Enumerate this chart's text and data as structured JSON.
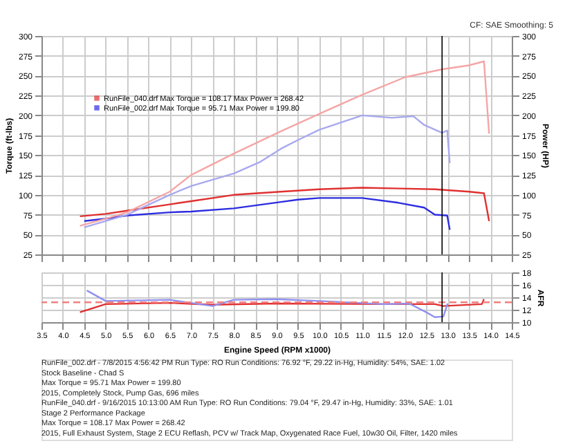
{
  "chart_data": [
    {
      "type": "line",
      "ylabel": "Torque (ft-lbs)",
      "y2label": "Power (HP)",
      "annotations": [
        "CF: SAE  Smoothing: 5"
      ],
      "xlim": [
        3.5,
        14.5
      ],
      "xticks": [
        {
          "value": 3.5,
          "label": null
        },
        {
          "value": 4,
          "label": null
        },
        {
          "value": 4.5,
          "label": null
        },
        {
          "value": 5,
          "label": null
        },
        {
          "value": 5.5,
          "label": null
        },
        {
          "value": 6,
          "label": null
        },
        {
          "value": 6.5,
          "label": null
        },
        {
          "value": 7,
          "label": null
        },
        {
          "value": 7.5,
          "label": null
        },
        {
          "value": 8,
          "label": null
        },
        {
          "value": 8.5,
          "label": null
        },
        {
          "value": 9,
          "label": null
        },
        {
          "value": 9.5,
          "label": null
        },
        {
          "value": 10,
          "label": null
        },
        {
          "value": 10.5,
          "label": null
        },
        {
          "value": 11,
          "label": null
        },
        {
          "value": 11.5,
          "label": null
        },
        {
          "value": 12,
          "label": null
        },
        {
          "value": 12.5,
          "label": null
        },
        {
          "value": 13,
          "label": null
        },
        {
          "value": 13.5,
          "label": null
        },
        {
          "value": 14,
          "label": null
        },
        {
          "value": 14.5,
          "label": null
        }
      ],
      "ylim": [
        25,
        300
      ],
      "yticks": [
        25,
        50,
        75,
        100,
        125,
        150,
        175,
        200,
        225,
        250,
        275,
        300
      ],
      "y2lim": [
        25,
        300
      ],
      "y2ticks": [
        25,
        50,
        75,
        100,
        125,
        150,
        175,
        200,
        225,
        250,
        275,
        300
      ],
      "tick_labels": "y",
      "grid": true,
      "legend": "top left",
      "ref_lines": [
        {
          "axis": "x",
          "value": 12.87,
          "color": "#000000"
        }
      ],
      "series": [
        {
          "name": "RunFile_040.drf Max Torque = 108.17    Max Power = 268.42",
          "color": "#e03030",
          "x": [
            4.4,
            5.0,
            5.5,
            6.5,
            7.0,
            8.0,
            9.1,
            10.0,
            11.0,
            11.85,
            12.7,
            13.5,
            13.85,
            13.97
          ],
          "values": [
            73,
            76,
            80,
            88,
            92,
            100,
            104,
            107,
            109,
            108,
            107,
            104,
            102,
            67
          ]
        },
        {
          "name": "RunFile_002.drf Max Torque = 95.71    Max Power = 199.80",
          "color": "#2c2ce0",
          "x": [
            4.5,
            5.0,
            5.5,
            6.5,
            7.0,
            8.0,
            9.1,
            9.5,
            10.0,
            11.0,
            11.85,
            12.45,
            12.7,
            12.99,
            13.05
          ],
          "values": [
            67,
            70,
            74,
            78,
            79,
            83,
            91,
            94,
            96,
            96,
            90,
            84,
            75,
            74,
            56
          ]
        },
        {
          "color": "#f5a5a5",
          "axis": "y2",
          "x": [
            4.4,
            5.0,
            5.5,
            6.5,
            7.0,
            8.0,
            9.1,
            10.0,
            11.0,
            12.0,
            12.87,
            13.5,
            13.85,
            13.97
          ],
          "values": [
            61,
            70,
            78,
            104,
            125,
            152,
            180,
            202,
            226,
            248,
            258,
            263,
            268,
            177
          ]
        },
        {
          "color": "#a8a8f0",
          "axis": "y2",
          "x": [
            4.5,
            5.5,
            6.5,
            7.0,
            8.0,
            8.6,
            9.1,
            9.5,
            10.0,
            11.0,
            11.7,
            12.2,
            12.45,
            12.87,
            12.99,
            13.05
          ],
          "values": [
            59,
            75,
            100,
            111,
            127,
            141,
            158,
            169,
            182,
            200,
            197,
            199,
            188,
            178,
            181,
            140
          ]
        }
      ]
    },
    {
      "type": "line",
      "xlabel": "Engine Speed (RPM x1000)",
      "y2label": "AFR",
      "xlim": [
        3.5,
        14.5
      ],
      "xticks": [
        3.5,
        {
          "value": 4,
          "label": "4.0"
        },
        4.5,
        {
          "value": 5,
          "label": "5.0"
        },
        5.5,
        {
          "value": 6,
          "label": "6.0"
        },
        6.5,
        {
          "value": 7,
          "label": "7.0"
        },
        7.5,
        {
          "value": 8,
          "label": "8.0"
        },
        8.5,
        {
          "value": 9,
          "label": "9.0"
        },
        9.5,
        {
          "value": 10,
          "label": "10.0"
        },
        10.5,
        {
          "value": 11,
          "label": "11.0"
        },
        11.5,
        {
          "value": 12,
          "label": "12.0"
        },
        12.5,
        {
          "value": 13,
          "label": "13.0"
        },
        13.5,
        {
          "value": 14,
          "label": "14.0"
        },
        14.5
      ],
      "y2lim": [
        10,
        18
      ],
      "y2ticks": [
        10,
        12,
        14,
        16,
        18
      ],
      "grid": true,
      "ref_lines": [
        {
          "axis": "x",
          "value": 12.87,
          "color": "#000000"
        },
        {
          "axis": "y2",
          "value": 13.2,
          "color": "#f08080",
          "line_style": "dashed"
        }
      ],
      "annotations": [
        "RunFile_002.drf - 7/8/2015 4:56:42 PM  Run Type: RO  Run Conditions: 76.92 °F, 29.22 in-Hg,  Humidity: 54%, SAE: 1.02",
        "Stock Baseline - Chad S",
        "Max Torque = 95.71  Max Power = 199.80",
        "2015, Completely Stock, Pump Gas, 696 miles",
        "RunFile_040.drf - 9/16/2015 10:13:00 AM  Run Type: RO  Run Conditions: 79.04 °F, 29.47 in-Hg,  Humidity: 33%, SAE: 1.01",
        "Stage 2 Performance Package",
        "Max Torque = 108.17  Max Power = 268.42",
        "2015, Full Exhaust System, Stage 2 ECU Reflash, PCV w/ Track Map, Oxygenated Race Fuel, 10w30 Oil, Filter, 1420 miles"
      ],
      "series": [
        {
          "color": "#e03030",
          "axis": "y2",
          "x": [
            4.4,
            5.0,
            6.5,
            7.5,
            9.0,
            11.5,
            12.7,
            12.9,
            13.8,
            13.85
          ],
          "values": [
            11.6,
            12.9,
            13.1,
            12.8,
            13.0,
            12.9,
            12.9,
            12.6,
            12.9,
            13.7
          ]
        },
        {
          "color": "#9090f0",
          "axis": "y2",
          "x": [
            4.56,
            5.0,
            6.5,
            7.5,
            8.0,
            9.0,
            10.0,
            11.5,
            12.1,
            12.5,
            12.7,
            12.9,
            13.0
          ],
          "values": [
            15.1,
            13.4,
            13.6,
            12.6,
            13.6,
            13.7,
            13.4,
            12.9,
            13.0,
            11.6,
            10.8,
            10.9,
            13.0
          ]
        }
      ]
    }
  ]
}
